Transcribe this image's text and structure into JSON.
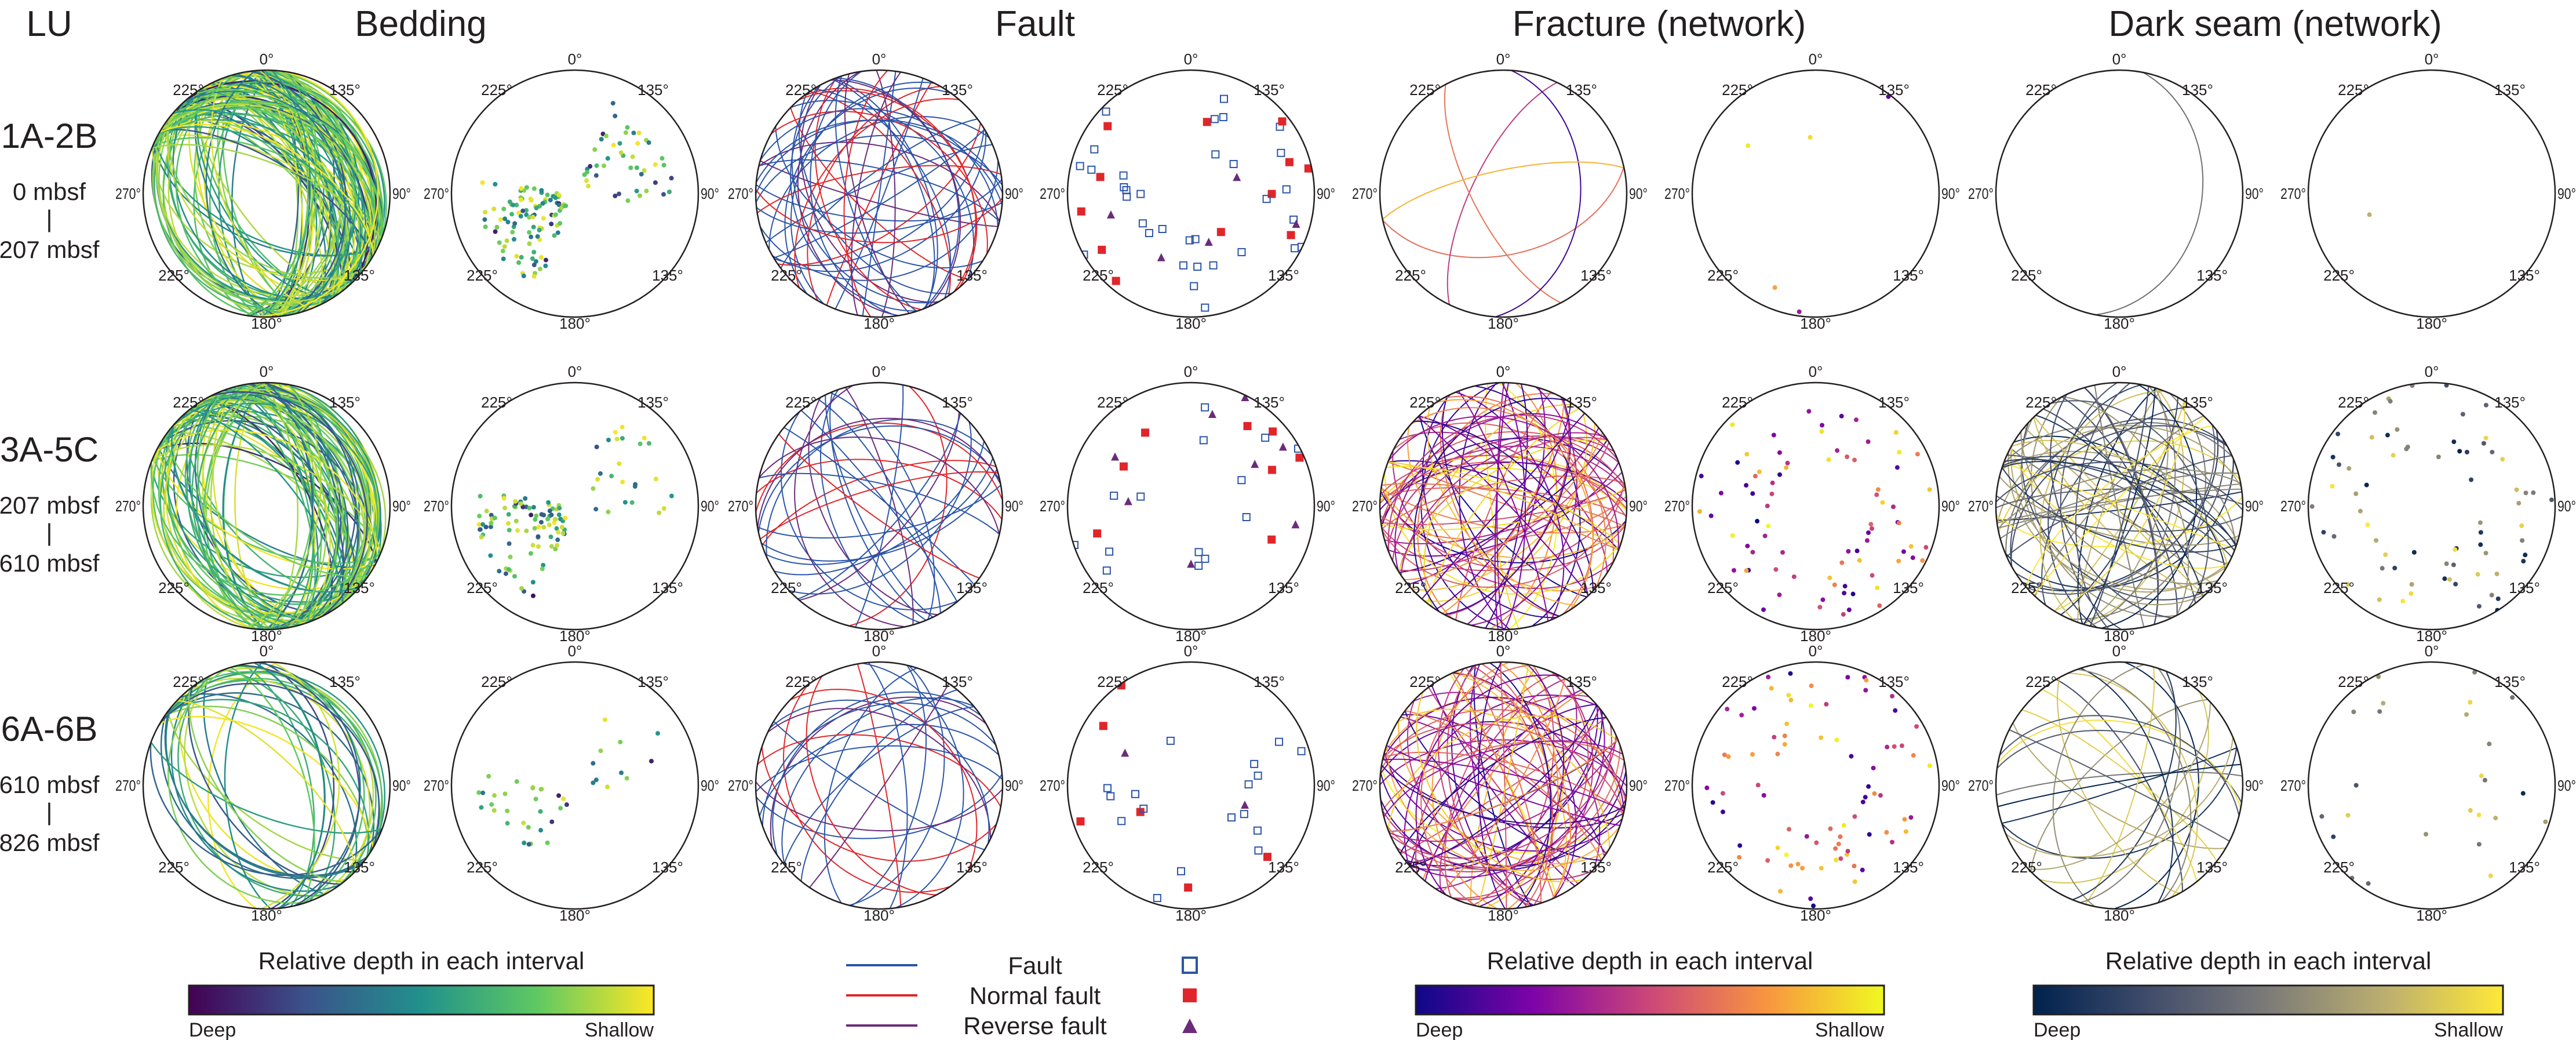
{
  "header": {
    "lu": "LU"
  },
  "columns": [
    {
      "title": "Bedding",
      "colormap": [
        "#440154",
        "#3b528b",
        "#21918c",
        "#5ec962",
        "#fde725"
      ]
    },
    {
      "title": "Fault"
    },
    {
      "title": "Fracture (network)",
      "colormap": [
        "#0d0887",
        "#7e03a8",
        "#cc4778",
        "#f89540",
        "#f0f921"
      ]
    },
    {
      "title": "Dark seam (network)",
      "colormap": [
        "#00224e",
        "#414d6b",
        "#7c7b78",
        "#bcaf6f",
        "#fee838"
      ]
    }
  ],
  "rows": [
    {
      "label": "1A-2B",
      "top": "0 mbsf",
      "sep": "|",
      "bottom": "207 mbsf"
    },
    {
      "label": "3A-5C",
      "top": "207 mbsf",
      "sep": "|",
      "bottom": "610 mbsf"
    },
    {
      "label": "6A-6B",
      "top": "610 mbsf",
      "sep": "|",
      "bottom": "826 mbsf"
    }
  ],
  "stereonet_labels": {
    "n": "0°",
    "ul": "225°",
    "ur": "135°",
    "w": "270°",
    "e": "90°",
    "ll": "225°",
    "lr": "135°",
    "s": "180°"
  },
  "colorbars": [
    {
      "title": "Relative depth in each interval",
      "low": "Deep",
      "high": "Shallow"
    },
    {
      "title": "Relative depth in each interval",
      "low": "Deep",
      "high": "Shallow"
    },
    {
      "title": "Relative depth in each interval",
      "low": "Deep",
      "high": "Shallow"
    }
  ],
  "fault_legend": [
    {
      "label": "Fault",
      "color": "#2b55a8",
      "symbol": "open-square"
    },
    {
      "label": "Normal fault",
      "color": "#e0262a",
      "symbol": "filled-square"
    },
    {
      "label": "Reverse fault",
      "color": "#6b2b7b",
      "symbol": "triangle"
    }
  ]
}
